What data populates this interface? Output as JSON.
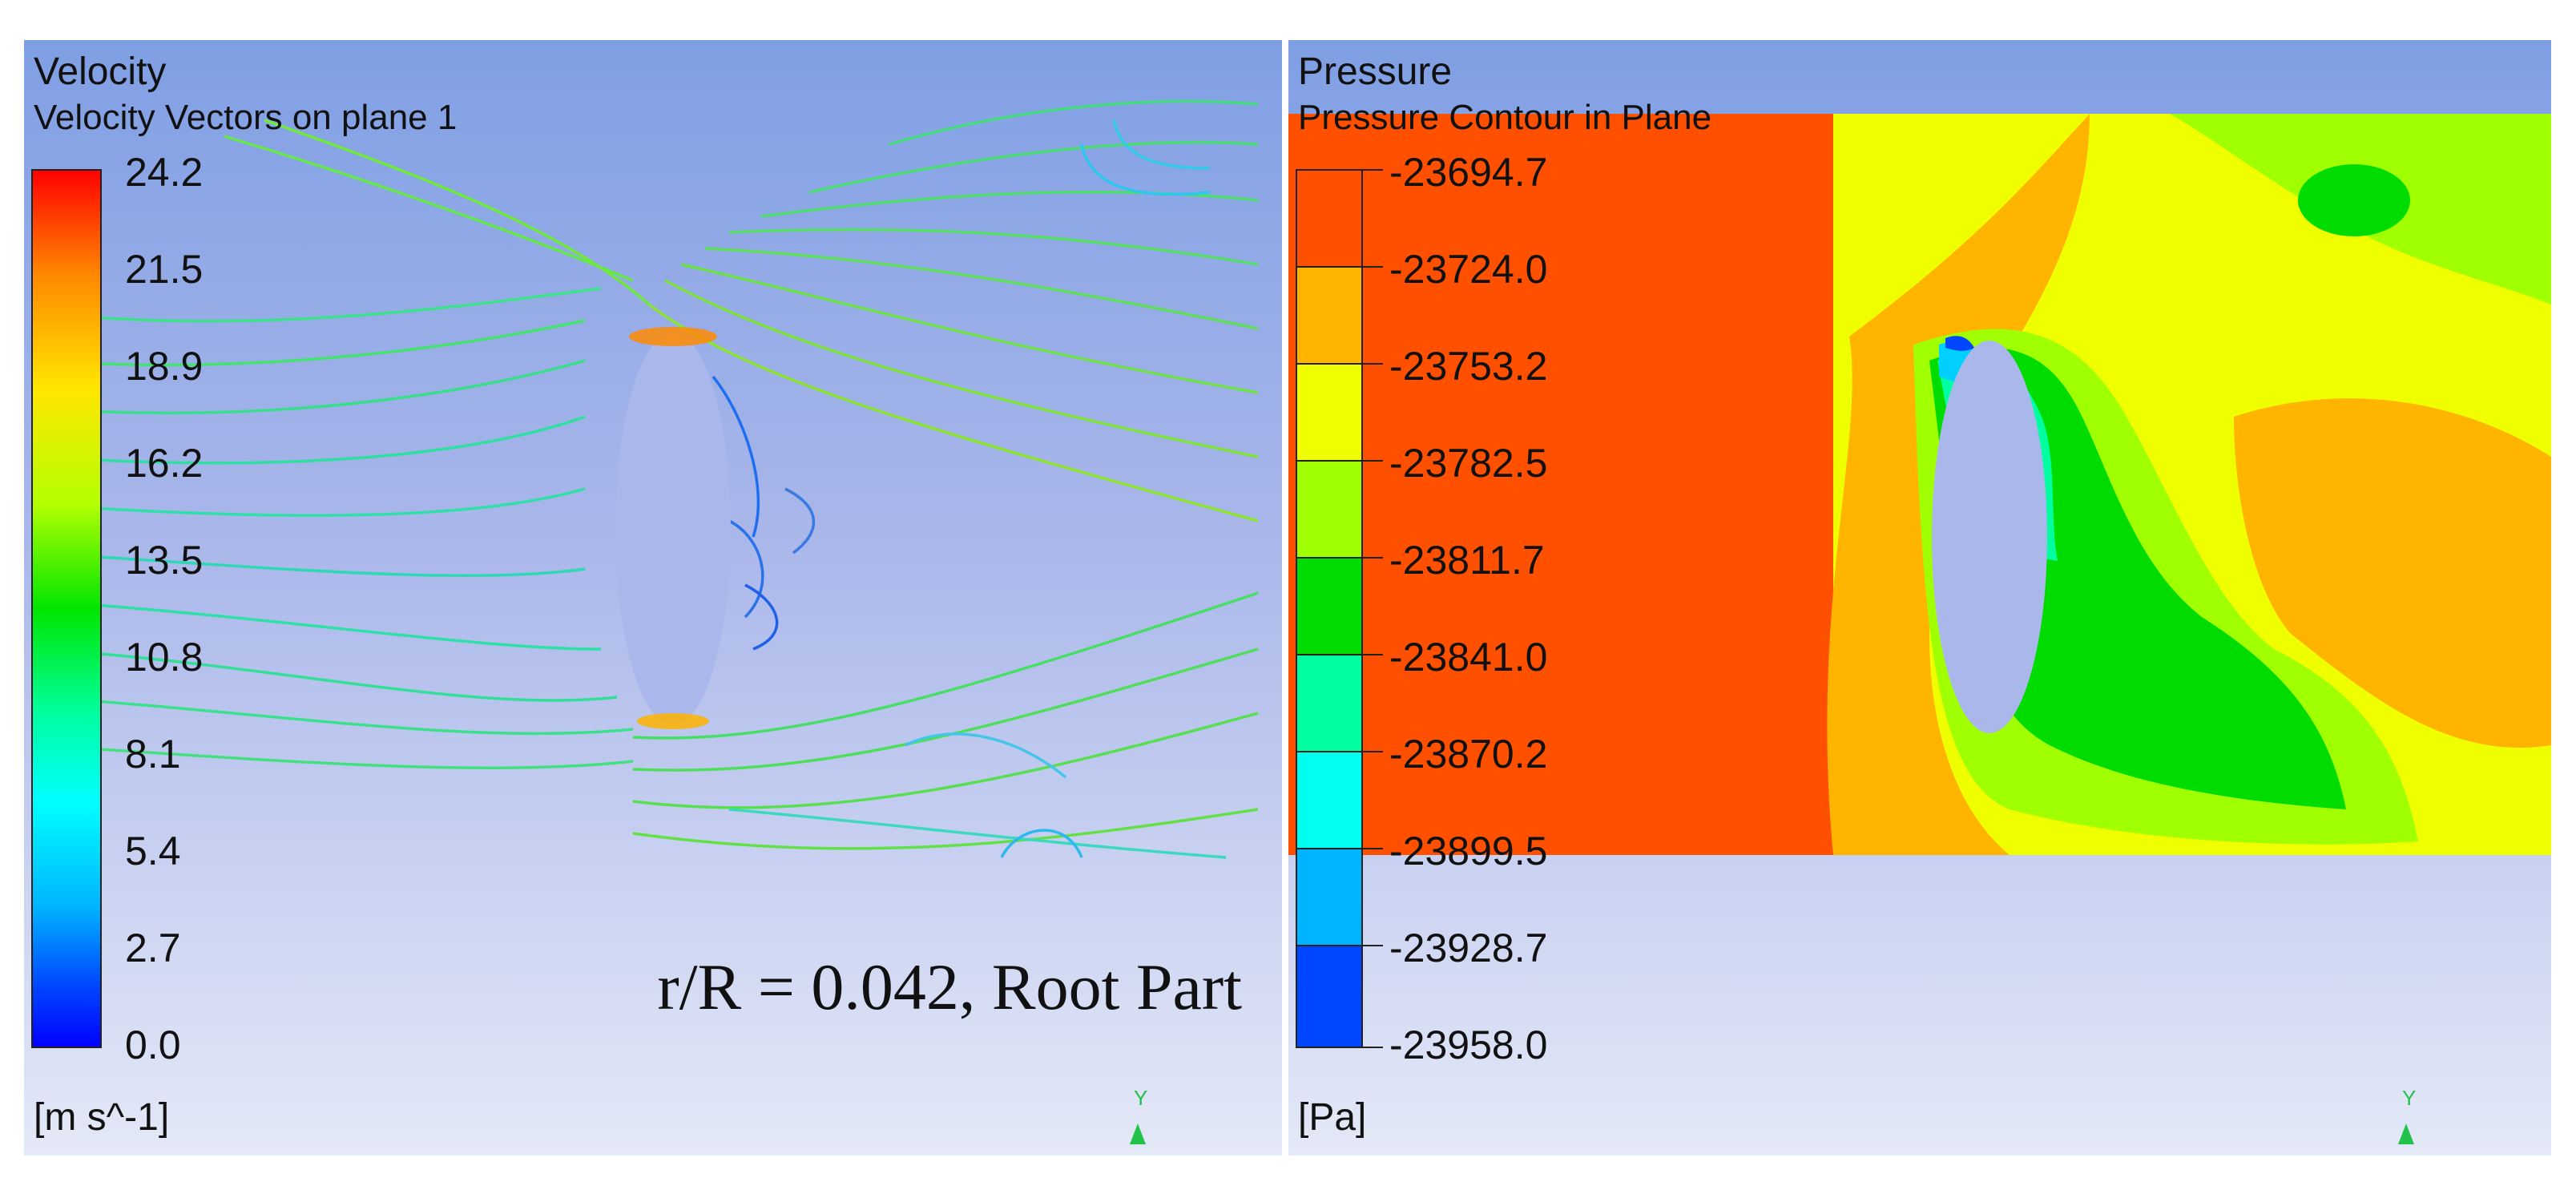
{
  "velocity_panel": {
    "title": "Velocity",
    "subtitle": "Velocity Vectors on plane 1",
    "units": "[m s^-1]",
    "annotation": "r/R = 0.042, Root Part",
    "axis_label": "Y",
    "colorbar_ticks": [
      "24.2",
      "21.5",
      "18.9",
      "16.2",
      "13.5",
      "10.8",
      "8.1",
      "5.4",
      "2.7",
      "0.0"
    ],
    "colormap": [
      "#ff0000",
      "#ff8800",
      "#ffe600",
      "#b4ff00",
      "#00e600",
      "#00ffa0",
      "#00ffff",
      "#00b4ff",
      "#0046ff",
      "#0000ff"
    ]
  },
  "pressure_panel": {
    "title": "Pressure",
    "subtitle": "Pressure Contour in Plane",
    "units": "[Pa]",
    "axis_label": "Y",
    "colorbar_ticks": [
      "-23694.7",
      "-23724.0",
      "-23753.2",
      "-23782.5",
      "-23811.7",
      "-23841.0",
      "-23870.2",
      "-23899.5",
      "-23928.7",
      "-23958.0"
    ],
    "bands": [
      "#ff5000",
      "#ffb400",
      "#f0ff00",
      "#a0ff00",
      "#00dc00",
      "#00ffa0",
      "#00fff0",
      "#00b4ff",
      "#0046ff"
    ]
  }
}
